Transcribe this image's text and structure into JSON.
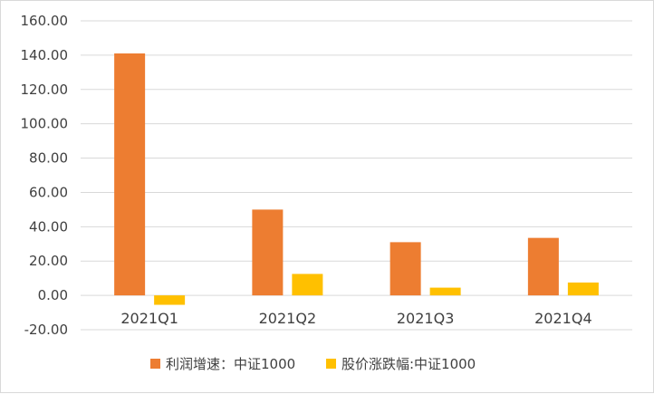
{
  "chart_data": {
    "type": "bar",
    "categories": [
      "2021Q1",
      "2021Q2",
      "2021Q3",
      "2021Q4"
    ],
    "series": [
      {
        "name": "利润增速：中证1000",
        "values": [
          141.0,
          50.0,
          31.0,
          33.5
        ],
        "color": "#ed7d31"
      },
      {
        "name": "股价涨跌幅:中证1000",
        "values": [
          -5.5,
          12.5,
          4.5,
          7.5
        ],
        "color": "#ffc000"
      }
    ],
    "y_ticks": [
      "160.00",
      "140.00",
      "120.00",
      "100.00",
      "80.00",
      "60.00",
      "40.00",
      "20.00",
      "0.00",
      "-20.00"
    ],
    "ylim": [
      -20,
      160
    ],
    "grid": true,
    "legend_position": "bottom"
  }
}
